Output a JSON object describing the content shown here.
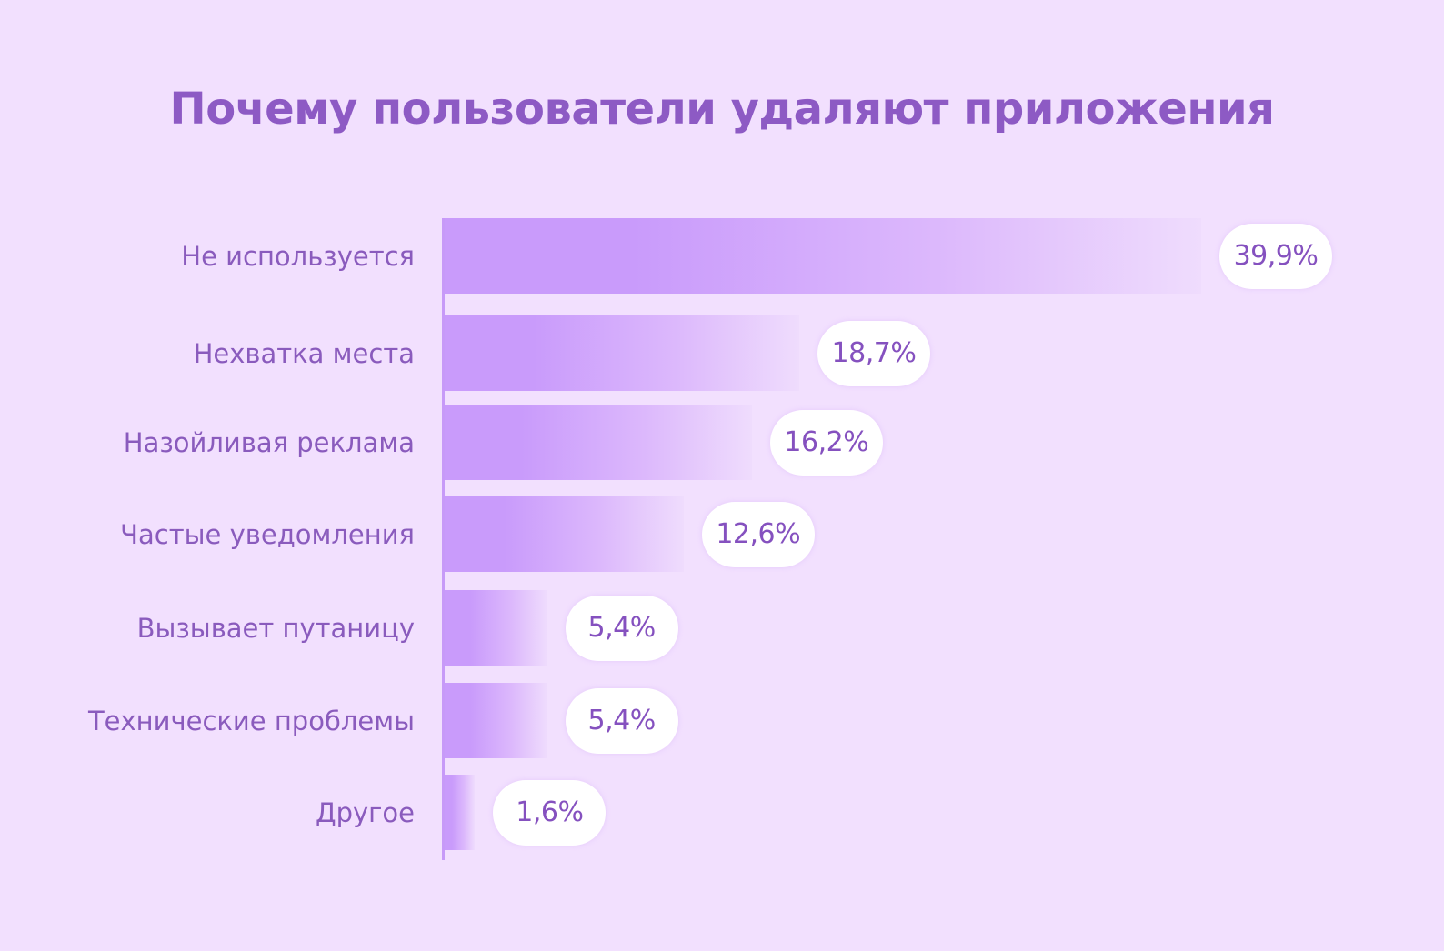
{
  "colors": {
    "background": "#f2e0fe",
    "title": "#8d5ac4",
    "label": "#8a5bbd",
    "bar_start": "#c99bfb",
    "bar_end": "#efdcfd",
    "pill": "#ffffff"
  },
  "chart_data": {
    "type": "bar",
    "orientation": "horizontal",
    "title": "Почему пользователи удаляют приложения",
    "xlabel": "",
    "ylabel": "",
    "xlim": [
      0,
      39.9
    ],
    "grid": false,
    "legend": "none",
    "categories": [
      "Не используется",
      "Нехватка места",
      "Назойливая реклама",
      "Частые уведомления",
      "Вызывает путаницу",
      "Технические проблемы",
      "Другое"
    ],
    "values": [
      39.9,
      18.7,
      16.2,
      12.6,
      5.4,
      5.4,
      1.6
    ],
    "value_labels": [
      "39,9%",
      "18,7%",
      "16,2%",
      "12,6%",
      "5,4%",
      "5,4%",
      "1,6%"
    ]
  }
}
